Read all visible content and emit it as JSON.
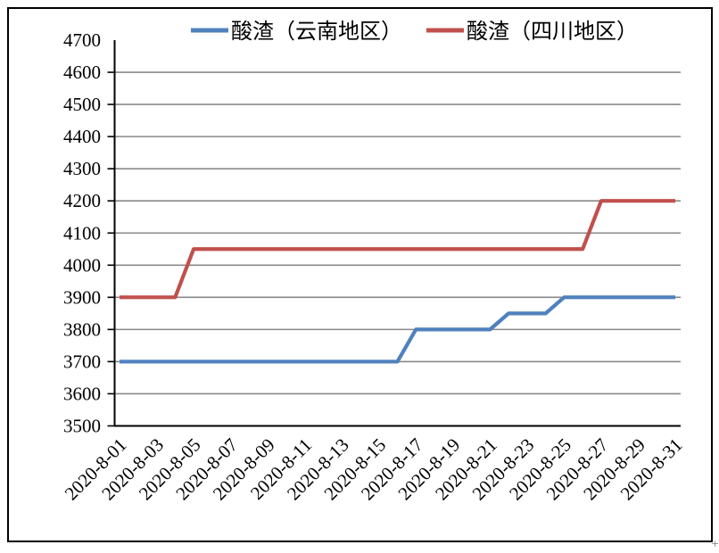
{
  "figure": {
    "background": "#ffffff",
    "border_color": "#000000",
    "artifact_glyph": "+"
  },
  "legend": {
    "position": "top",
    "entries": [
      {
        "label": "酸渣（云南地区）",
        "color": "#4F81BD"
      },
      {
        "label": "酸渣（四川地区）",
        "color": "#C0504D"
      }
    ]
  },
  "chart_data": {
    "type": "line",
    "title": "",
    "xlabel": "",
    "ylabel": "",
    "grid": "horizontal",
    "legend_position": "top",
    "ylim": [
      3500,
      4700
    ],
    "ytick_step": 100,
    "gridline_color": "#898989",
    "axis_color": "#000000",
    "x": [
      "2020-8-01",
      "2020-8-02",
      "2020-8-03",
      "2020-8-04",
      "2020-8-05",
      "2020-8-06",
      "2020-8-07",
      "2020-8-08",
      "2020-8-09",
      "2020-8-10",
      "2020-8-11",
      "2020-8-12",
      "2020-8-13",
      "2020-8-14",
      "2020-8-15",
      "2020-8-16",
      "2020-8-17",
      "2020-8-18",
      "2020-8-19",
      "2020-8-20",
      "2020-8-21",
      "2020-8-22",
      "2020-8-23",
      "2020-8-24",
      "2020-8-25",
      "2020-8-26",
      "2020-8-27",
      "2020-8-28",
      "2020-8-29",
      "2020-8-30",
      "2020-8-31"
    ],
    "x_tick_labels": [
      "2020-8-01",
      "2020-8-03",
      "2020-8-05",
      "2020-8-07",
      "2020-8-09",
      "2020-8-11",
      "2020-8-13",
      "2020-8-15",
      "2020-8-17",
      "2020-8-19",
      "2020-8-21",
      "2020-8-23",
      "2020-8-25",
      "2020-8-27",
      "2020-8-29",
      "2020-8-31"
    ],
    "series": [
      {
        "name": "酸渣（云南地区）",
        "color": "#4F81BD",
        "values": [
          3700,
          3700,
          3700,
          3700,
          3700,
          3700,
          3700,
          3700,
          3700,
          3700,
          3700,
          3700,
          3700,
          3700,
          3700,
          3700,
          3800,
          3800,
          3800,
          3800,
          3800,
          3850,
          3850,
          3850,
          3900,
          3900,
          3900,
          3900,
          3900,
          3900,
          3900
        ]
      },
      {
        "name": "酸渣（四川地区）",
        "color": "#C0504D",
        "values": [
          3900,
          3900,
          3900,
          3900,
          4050,
          4050,
          4050,
          4050,
          4050,
          4050,
          4050,
          4050,
          4050,
          4050,
          4050,
          4050,
          4050,
          4050,
          4050,
          4050,
          4050,
          4050,
          4050,
          4050,
          4050,
          4050,
          4200,
          4200,
          4200,
          4200,
          4200
        ]
      }
    ]
  }
}
